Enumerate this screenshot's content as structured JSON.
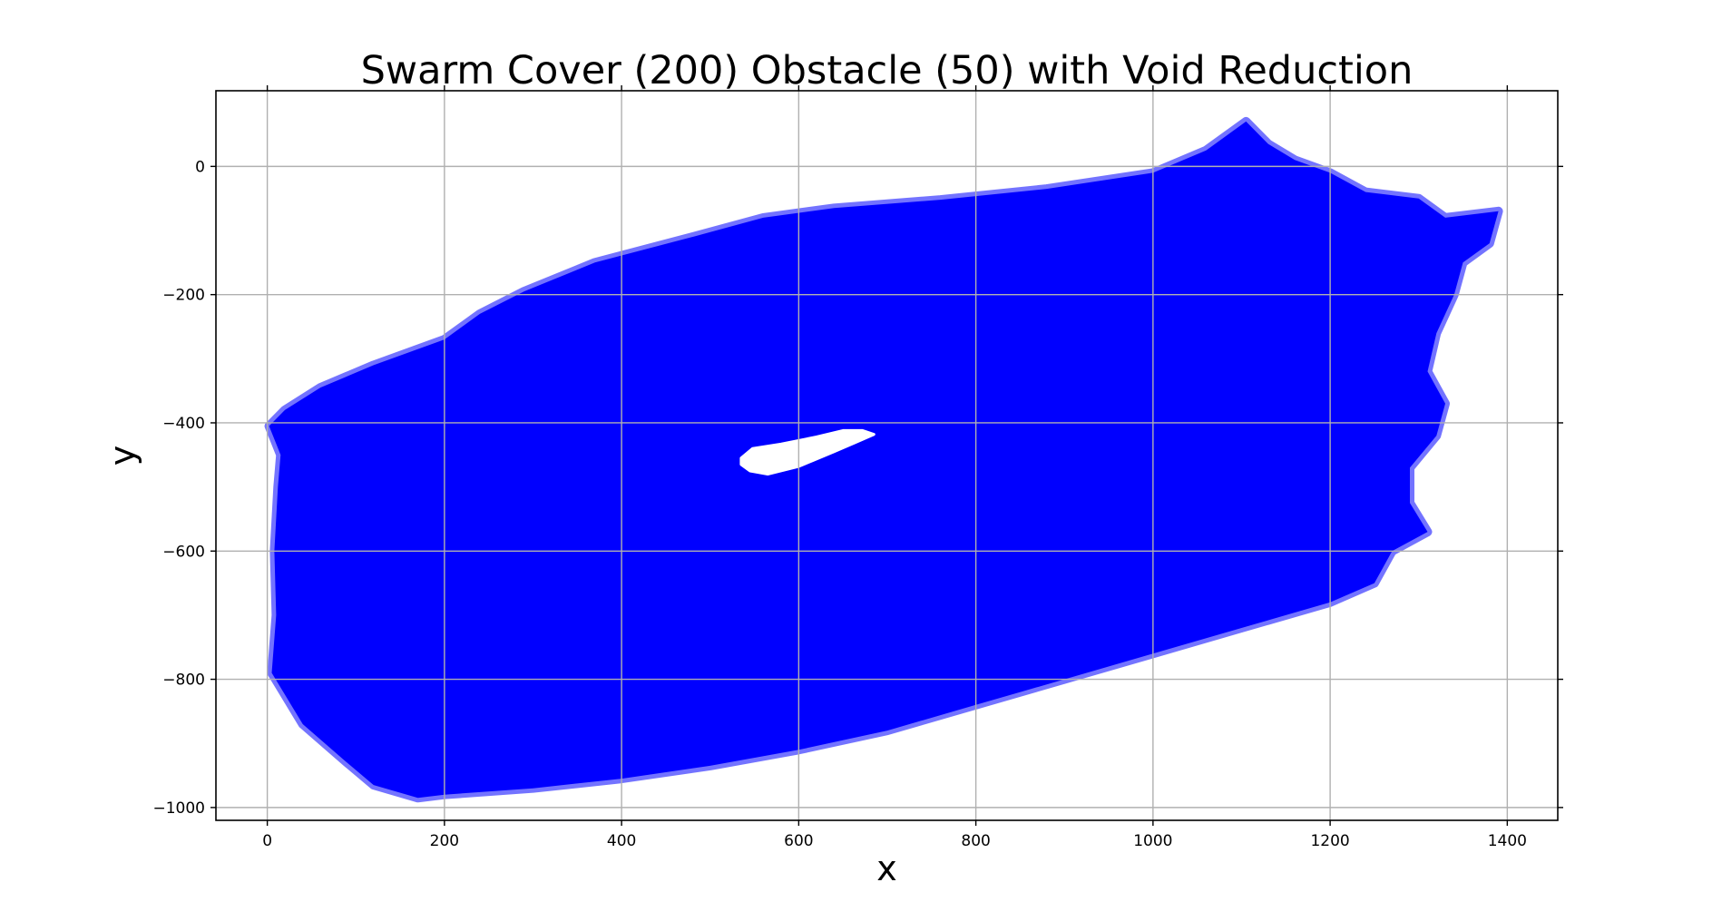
{
  "chart_data": {
    "type": "scatter",
    "title": "Swarm Cover (200) Obstacle (50) with Void Reduction",
    "xlabel": "x",
    "ylabel": "y",
    "xlim": [
      -58,
      1457
    ],
    "ylim": [
      -1020,
      118
    ],
    "xticks": [
      0,
      200,
      400,
      600,
      800,
      1000,
      1200,
      1400
    ],
    "yticks": [
      0,
      -200,
      -400,
      -600,
      -800,
      -1000
    ],
    "xtick_labels": [
      "0",
      "200",
      "400",
      "600",
      "800",
      "1000",
      "1200",
      "1400"
    ],
    "ytick_labels": [
      "0",
      "−200",
      "−400",
      "−600",
      "−800",
      "−1000"
    ],
    "grid": true,
    "marker_color": "#0000ff",
    "background_color": "#ffffff",
    "coverage_region_outline": [
      [
        2,
        -405
      ],
      [
        20,
        -380
      ],
      [
        60,
        -345
      ],
      [
        120,
        -310
      ],
      [
        200,
        -270
      ],
      [
        240,
        -230
      ],
      [
        290,
        -195
      ],
      [
        370,
        -150
      ],
      [
        480,
        -110
      ],
      [
        560,
        -80
      ],
      [
        640,
        -65
      ],
      [
        760,
        -52
      ],
      [
        880,
        -35
      ],
      [
        1000,
        -10
      ],
      [
        1060,
        25
      ],
      [
        1105,
        70
      ],
      [
        1130,
        35
      ],
      [
        1160,
        10
      ],
      [
        1200,
        -10
      ],
      [
        1240,
        -40
      ],
      [
        1300,
        -50
      ],
      [
        1330,
        -80
      ],
      [
        1390,
        -70
      ],
      [
        1380,
        -120
      ],
      [
        1350,
        -150
      ],
      [
        1340,
        -200
      ],
      [
        1320,
        -260
      ],
      [
        1310,
        -320
      ],
      [
        1330,
        -370
      ],
      [
        1320,
        -420
      ],
      [
        1290,
        -470
      ],
      [
        1290,
        -525
      ],
      [
        1310,
        -570
      ],
      [
        1270,
        -600
      ],
      [
        1250,
        -650
      ],
      [
        1200,
        -680
      ],
      [
        1100,
        -720
      ],
      [
        1000,
        -760
      ],
      [
        900,
        -800
      ],
      [
        800,
        -840
      ],
      [
        700,
        -880
      ],
      [
        600,
        -910
      ],
      [
        500,
        -935
      ],
      [
        400,
        -955
      ],
      [
        300,
        -970
      ],
      [
        200,
        -980
      ],
      [
        170,
        -985
      ],
      [
        120,
        -965
      ],
      [
        90,
        -930
      ],
      [
        40,
        -870
      ],
      [
        5,
        -790
      ],
      [
        10,
        -700
      ],
      [
        8,
        -600
      ],
      [
        12,
        -500
      ],
      [
        15,
        -450
      ]
    ],
    "void_region_outline": [
      [
        535,
        -455
      ],
      [
        548,
        -440
      ],
      [
        580,
        -433
      ],
      [
        620,
        -422
      ],
      [
        650,
        -412
      ],
      [
        672,
        -412
      ],
      [
        685,
        -418
      ],
      [
        665,
        -430
      ],
      [
        640,
        -445
      ],
      [
        600,
        -468
      ],
      [
        565,
        -480
      ],
      [
        545,
        -475
      ],
      [
        535,
        -465
      ]
    ]
  }
}
